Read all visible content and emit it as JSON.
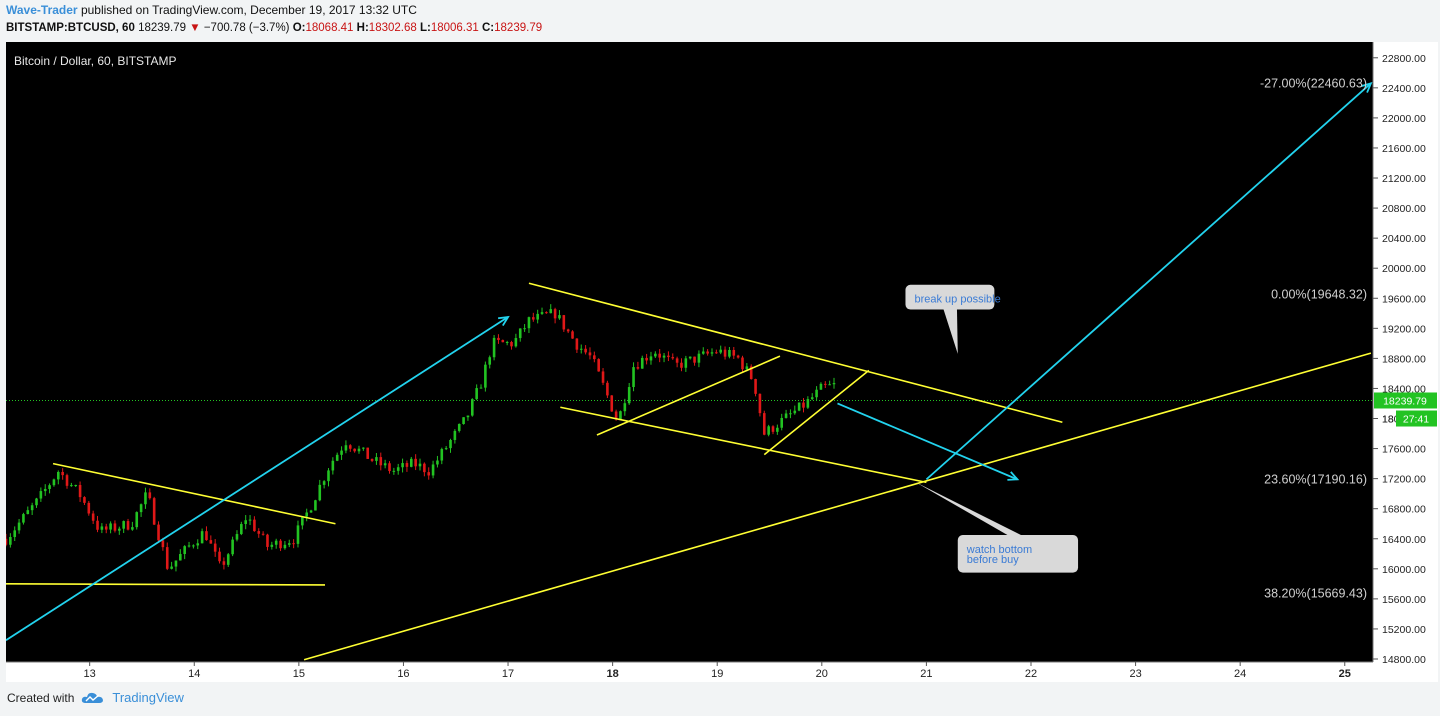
{
  "header": {
    "author": "Wave-Trader",
    "published": "published on TradingView.com, December 19, 2017 13:32 UTC",
    "symbol": "BITSTAMP:BTCUSD, 60",
    "last": "18239.79",
    "change": "−700.78 (−3.7%)",
    "o_label": "O:",
    "o_value": "18068.41",
    "h_label": "H:",
    "h_value": "18302.68",
    "l_label": "L:",
    "l_value": "18006.31",
    "c_label": "C:",
    "c_value": "18239.79"
  },
  "footer": {
    "created_with": "Created with",
    "brand": "TradingView"
  },
  "colors": {
    "background": "#000000",
    "up": "#22c322",
    "down": "#e01818",
    "trendline": "#ffff33",
    "arrow": "#22d3ee",
    "price_line": "#22c322",
    "callout": "#d9d9d9",
    "callout_text": "#3a7bd5"
  },
  "chart_data": {
    "type": "candlestick",
    "title": "Bitcoin / Dollar, 60, BITSTAMP",
    "x_ticks": [
      "13",
      "14",
      "15",
      "16",
      "17",
      "18",
      "19",
      "20",
      "21",
      "22",
      "23",
      "24",
      "25"
    ],
    "bold_x_ticks": [
      "18",
      "25"
    ],
    "xlim_days": [
      12.2,
      25.27
    ],
    "y_ticks": [
      14800,
      15200,
      15600,
      16000,
      16400,
      16800,
      17200,
      17600,
      18000,
      18400,
      18800,
      19200,
      19600,
      20000,
      20400,
      20800,
      21200,
      21600,
      22000,
      22400,
      22800
    ],
    "ylim": [
      14760,
      23010
    ],
    "current_price": {
      "value": 18239.79,
      "label": "18239.79",
      "countdown": "27:41"
    },
    "partly_hidden_tick_text": "18",
    "fib_levels": [
      {
        "label": "-27.00%(22460.63)",
        "value": 22460.63
      },
      {
        "label": "0.00%(19648.32)",
        "value": 19648.32
      },
      {
        "label": "23.60%(17190.16)",
        "value": 17190.16
      },
      {
        "label": "38.20%(15669.43)",
        "value": 15669.43
      }
    ],
    "candle_path": [
      [
        12.2,
        16400
      ],
      [
        12.5,
        16900
      ],
      [
        12.7,
        17300
      ],
      [
        12.9,
        17000
      ],
      [
        13.1,
        16500
      ],
      [
        13.4,
        16600
      ],
      [
        13.55,
        17000
      ],
      [
        13.75,
        16000
      ],
      [
        13.95,
        16300
      ],
      [
        14.1,
        16500
      ],
      [
        14.25,
        16000
      ],
      [
        14.5,
        16700
      ],
      [
        14.7,
        16300
      ],
      [
        14.95,
        16400
      ],
      [
        15.1,
        16800
      ],
      [
        15.3,
        17400
      ],
      [
        15.45,
        17700
      ],
      [
        15.7,
        17450
      ],
      [
        15.9,
        17300
      ],
      [
        16.1,
        17400
      ],
      [
        16.25,
        17300
      ],
      [
        16.45,
        17700
      ],
      [
        16.6,
        18000
      ],
      [
        16.75,
        18500
      ],
      [
        16.85,
        19000
      ],
      [
        17.05,
        19000
      ],
      [
        17.2,
        19300
      ],
      [
        17.45,
        19400
      ],
      [
        17.65,
        19000
      ],
      [
        17.8,
        18800
      ],
      [
        17.95,
        18300
      ],
      [
        18.05,
        17950
      ],
      [
        18.2,
        18700
      ],
      [
        18.4,
        18900
      ],
      [
        18.6,
        18700
      ],
      [
        18.8,
        18800
      ],
      [
        19.0,
        18900
      ],
      [
        19.2,
        18800
      ],
      [
        19.35,
        18500
      ],
      [
        19.45,
        17800
      ],
      [
        19.55,
        17900
      ],
      [
        19.7,
        18050
      ],
      [
        19.85,
        18200
      ],
      [
        20.0,
        18400
      ],
      [
        20.15,
        18450
      ]
    ],
    "trendlines": [
      {
        "style": "line",
        "points": [
          [
            12.2,
            15800
          ],
          [
            15.25,
            15785
          ]
        ]
      },
      {
        "style": "line",
        "points": [
          [
            12.65,
            17400
          ],
          [
            15.35,
            16600
          ]
        ]
      },
      {
        "style": "line",
        "points": [
          [
            17.2,
            19800
          ],
          [
            22.3,
            17950
          ]
        ]
      },
      {
        "style": "line",
        "points": [
          [
            17.5,
            18150
          ],
          [
            21.0,
            17150
          ]
        ]
      },
      {
        "style": "line",
        "points": [
          [
            17.85,
            17780
          ],
          [
            19.6,
            18830
          ]
        ]
      },
      {
        "style": "line",
        "points": [
          [
            19.45,
            17520
          ],
          [
            20.45,
            18640
          ]
        ]
      },
      {
        "style": "line",
        "points": [
          [
            15.05,
            14790
          ],
          [
            25.25,
            18870
          ]
        ]
      }
    ],
    "arrows": [
      {
        "points": [
          [
            12.2,
            15050
          ],
          [
            17.0,
            19350
          ]
        ]
      },
      {
        "points": [
          [
            20.15,
            18200
          ],
          [
            21.87,
            17190
          ]
        ]
      },
      {
        "points": [
          [
            21.0,
            17190
          ],
          [
            25.25,
            22460
          ]
        ]
      }
    ],
    "callouts": [
      {
        "text": [
          "break up possible"
        ],
        "box": [
          [
            20.8,
            19780
          ],
          [
            21.65,
            19450
          ]
        ],
        "pointer_tip": [
          21.3,
          18860
        ]
      },
      {
        "text": [
          "watch bottom",
          "before buy"
        ],
        "box": [
          [
            21.3,
            16450
          ],
          [
            22.45,
            15950
          ]
        ],
        "pointer_tip": [
          20.9,
          17150
        ]
      }
    ]
  }
}
